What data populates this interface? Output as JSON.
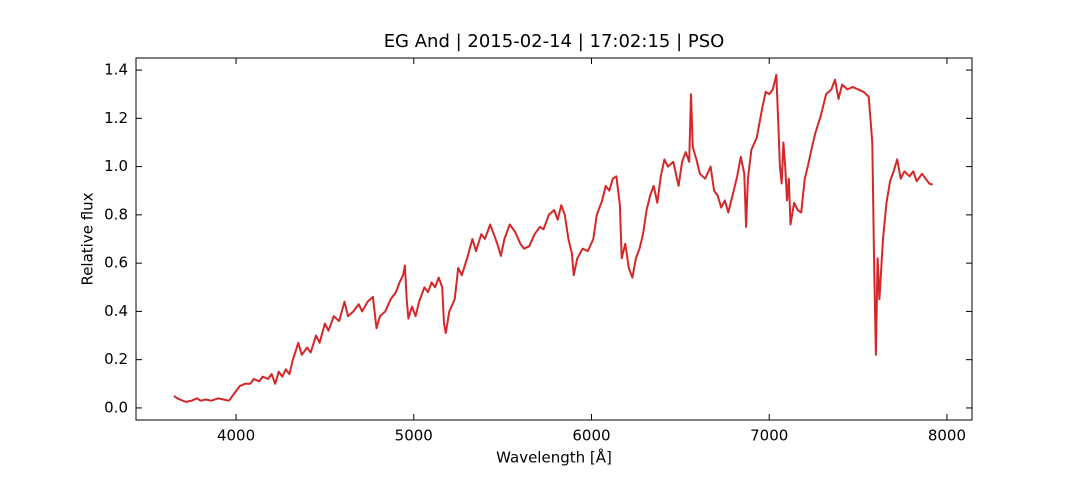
{
  "chart_data": {
    "type": "line",
    "title": "EG And | 2015-02-14 | 17:02:15 | PSO",
    "xlabel": "Wavelength [Å]",
    "ylabel": "Relative flux",
    "xlim": [
      3437,
      8141
    ],
    "ylim": [
      -0.05,
      1.45
    ],
    "xticks": [
      4000,
      5000,
      6000,
      7000,
      8000
    ],
    "yticks": [
      {
        "value": 0,
        "label": "0.0"
      },
      0.2,
      0.4,
      0.6,
      0.8,
      {
        "value": 1,
        "label": "1.0"
      },
      1.2,
      1.4
    ],
    "grid": false,
    "series": [
      {
        "name": "EG And",
        "color": "#d62728",
        "x": [
          3650,
          3670,
          3700,
          3720,
          3750,
          3780,
          3800,
          3830,
          3860,
          3900,
          3930,
          3960,
          3980,
          4000,
          4020,
          4050,
          4080,
          4100,
          4130,
          4150,
          4180,
          4200,
          4220,
          4240,
          4260,
          4280,
          4300,
          4320,
          4350,
          4370,
          4400,
          4420,
          4450,
          4470,
          4500,
          4520,
          4550,
          4580,
          4610,
          4630,
          4660,
          4690,
          4710,
          4740,
          4770,
          4790,
          4810,
          4840,
          4870,
          4900,
          4920,
          4940,
          4950,
          4960,
          4970,
          4990,
          5010,
          5030,
          5060,
          5080,
          5100,
          5120,
          5140,
          5160,
          5170,
          5180,
          5200,
          5230,
          5250,
          5270,
          5300,
          5330,
          5350,
          5380,
          5400,
          5430,
          5450,
          5470,
          5490,
          5510,
          5540,
          5570,
          5600,
          5620,
          5650,
          5680,
          5710,
          5730,
          5760,
          5790,
          5810,
          5830,
          5850,
          5870,
          5890,
          5900,
          5920,
          5950,
          5980,
          6010,
          6030,
          6060,
          6080,
          6100,
          6120,
          6140,
          6160,
          6170,
          6190,
          6210,
          6230,
          6250,
          6270,
          6290,
          6310,
          6330,
          6350,
          6370,
          6390,
          6410,
          6430,
          6460,
          6490,
          6510,
          6530,
          6550,
          6560,
          6570,
          6590,
          6610,
          6640,
          6670,
          6690,
          6710,
          6730,
          6750,
          6770,
          6800,
          6820,
          6840,
          6860,
          6870,
          6880,
          6900,
          6930,
          6960,
          6980,
          7000,
          7020,
          7040,
          7050,
          7060,
          7070,
          7080,
          7090,
          7100,
          7110,
          7120,
          7140,
          7160,
          7180,
          7200,
          7220,
          7240,
          7260,
          7290,
          7320,
          7350,
          7370,
          7390,
          7410,
          7440,
          7470,
          7500,
          7530,
          7560,
          7580,
          7590,
          7600,
          7610,
          7620,
          7640,
          7660,
          7680,
          7700,
          7720,
          7740,
          7760,
          7790,
          7810,
          7830,
          7860,
          7880,
          7900,
          7920
        ],
        "values": [
          0.05,
          0.04,
          0.03,
          0.025,
          0.03,
          0.04,
          0.03,
          0.035,
          0.03,
          0.04,
          0.035,
          0.03,
          0.05,
          0.07,
          0.09,
          0.1,
          0.1,
          0.12,
          0.11,
          0.13,
          0.12,
          0.14,
          0.1,
          0.15,
          0.13,
          0.16,
          0.14,
          0.2,
          0.27,
          0.22,
          0.25,
          0.23,
          0.3,
          0.27,
          0.35,
          0.32,
          0.38,
          0.36,
          0.44,
          0.38,
          0.4,
          0.43,
          0.4,
          0.44,
          0.46,
          0.33,
          0.38,
          0.4,
          0.45,
          0.48,
          0.52,
          0.55,
          0.59,
          0.45,
          0.37,
          0.42,
          0.38,
          0.44,
          0.5,
          0.48,
          0.52,
          0.5,
          0.54,
          0.5,
          0.35,
          0.31,
          0.4,
          0.45,
          0.58,
          0.55,
          0.62,
          0.7,
          0.65,
          0.72,
          0.7,
          0.76,
          0.72,
          0.68,
          0.63,
          0.7,
          0.76,
          0.73,
          0.68,
          0.66,
          0.67,
          0.72,
          0.75,
          0.74,
          0.8,
          0.82,
          0.78,
          0.84,
          0.8,
          0.7,
          0.64,
          0.55,
          0.62,
          0.66,
          0.65,
          0.7,
          0.8,
          0.86,
          0.92,
          0.9,
          0.95,
          0.96,
          0.84,
          0.62,
          0.68,
          0.58,
          0.54,
          0.62,
          0.66,
          0.72,
          0.82,
          0.88,
          0.92,
          0.85,
          0.96,
          1.03,
          1.0,
          1.02,
          0.92,
          1.02,
          1.06,
          1.02,
          1.3,
          1.08,
          1.03,
          0.97,
          0.95,
          1.0,
          0.9,
          0.88,
          0.83,
          0.86,
          0.81,
          0.9,
          0.96,
          1.04,
          0.97,
          0.75,
          0.95,
          1.07,
          1.12,
          1.24,
          1.31,
          1.3,
          1.32,
          1.38,
          1.2,
          1.0,
          0.93,
          1.1,
          1.0,
          0.86,
          0.95,
          0.76,
          0.85,
          0.82,
          0.81,
          0.95,
          1.01,
          1.08,
          1.14,
          1.21,
          1.3,
          1.32,
          1.36,
          1.28,
          1.34,
          1.32,
          1.33,
          1.32,
          1.31,
          1.29,
          1.1,
          0.6,
          0.22,
          0.62,
          0.45,
          0.7,
          0.85,
          0.94,
          0.98,
          1.03,
          0.95,
          0.98,
          0.96,
          0.98,
          0.94,
          0.97,
          0.95,
          0.93,
          0.925
        ]
      }
    ]
  }
}
